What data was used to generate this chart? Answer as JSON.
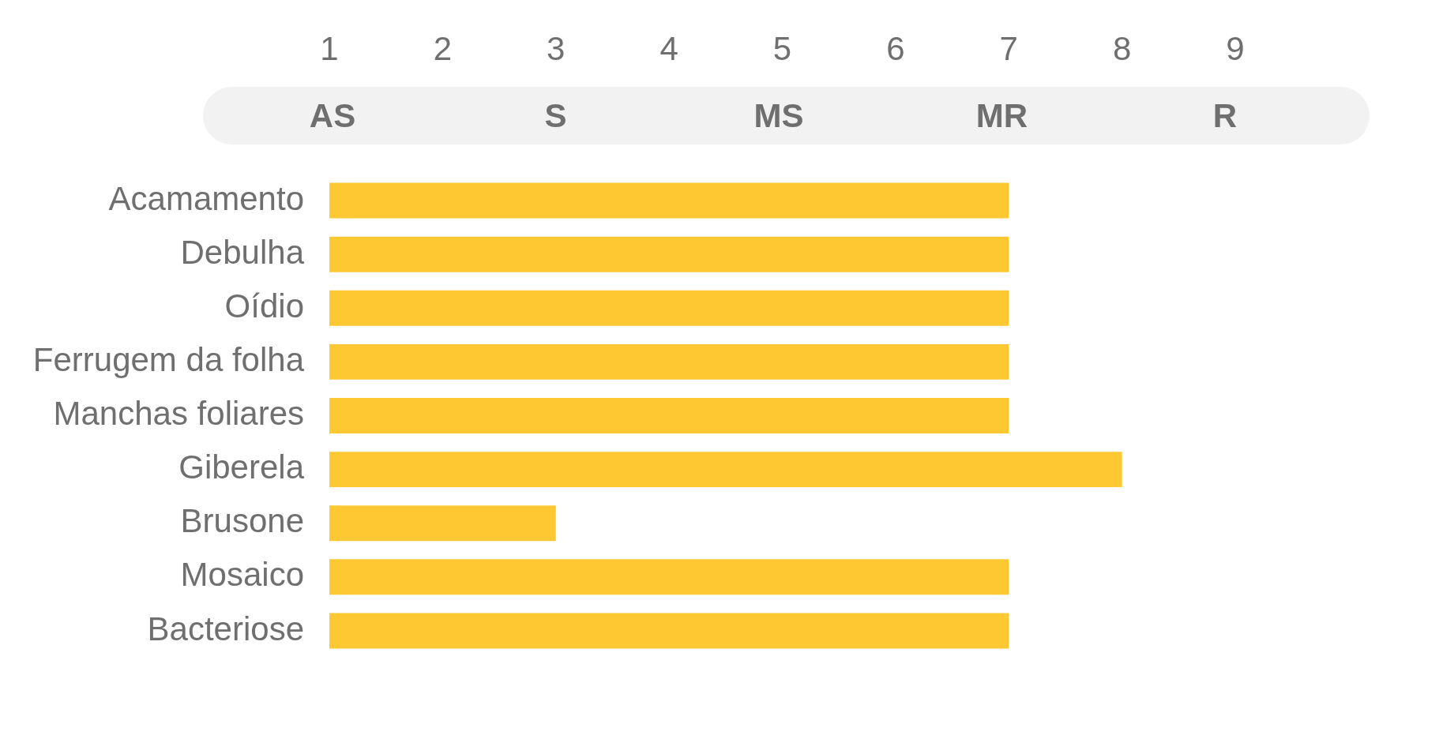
{
  "chart_data": {
    "type": "bar",
    "orientation": "horizontal",
    "categories": [
      "Acamamento",
      "Debulha",
      "Oídio",
      "Ferrugem da folha",
      "Manchas foliares",
      "Giberela",
      "Brusone",
      "Mosaico",
      "Bacteriose"
    ],
    "values": [
      7,
      7,
      7,
      7,
      7,
      8,
      3,
      7,
      7
    ],
    "color": "#fec833",
    "xlim": [
      1,
      9
    ],
    "xticks": [
      1,
      2,
      3,
      4,
      5,
      6,
      7,
      8,
      9
    ],
    "annotations": [
      "AS",
      "S",
      "MS",
      "MR",
      "R"
    ],
    "grid": false
  }
}
